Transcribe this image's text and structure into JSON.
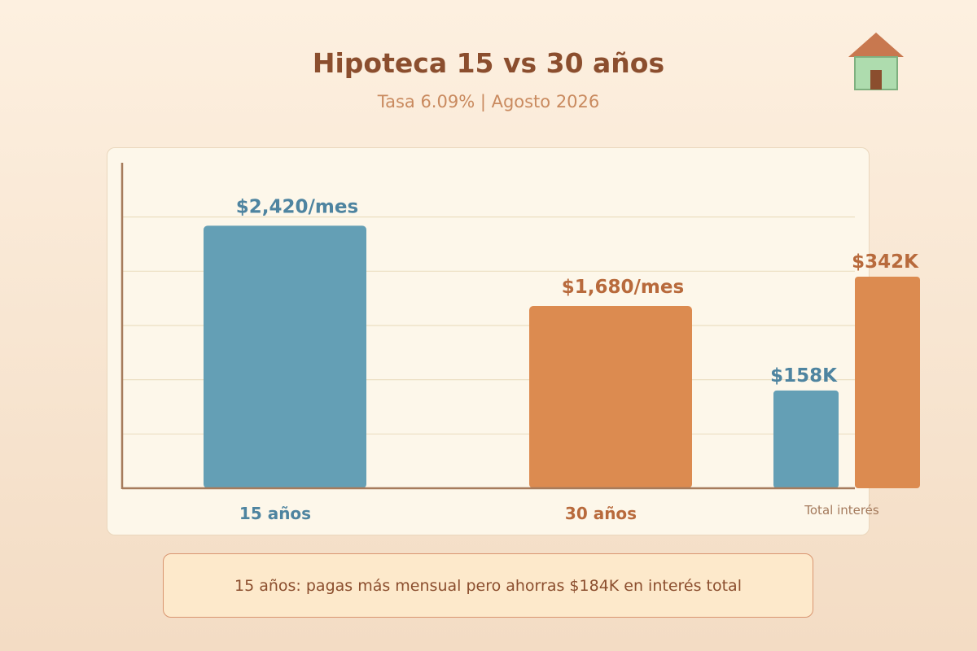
{
  "header": {
    "title": "Hipoteca 15 vs 30 años",
    "subtitle": "Tasa 6.09% | Agosto 2026",
    "icon": "house-icon"
  },
  "colors": {
    "blue": "#649fb5",
    "orange": "#dc8b50",
    "blue_text": "#4e84a0",
    "orange_text": "#b86a3c"
  },
  "chart_data": {
    "type": "bar",
    "title": "Hipoteca 15 vs 30 años",
    "subtitle": "Tasa 6.09% | Agosto 2026",
    "grid": true,
    "monthly_payment": {
      "categories": [
        "15 años",
        "30 años"
      ],
      "values": [
        2420,
        1680
      ],
      "labels": [
        "$2,420/mes",
        "$1,680/mes"
      ],
      "colors": [
        "#649fb5",
        "#dc8b50"
      ],
      "ylim": [
        0,
        3000
      ]
    },
    "total_interest": {
      "label": "Total interés",
      "values": [
        158,
        342
      ],
      "labels": [
        "$158K",
        "$342K"
      ],
      "colors": [
        "#649fb5",
        "#dc8b50"
      ]
    }
  },
  "note": "15 años: pagas más mensual pero ahorras $184K en interés total"
}
